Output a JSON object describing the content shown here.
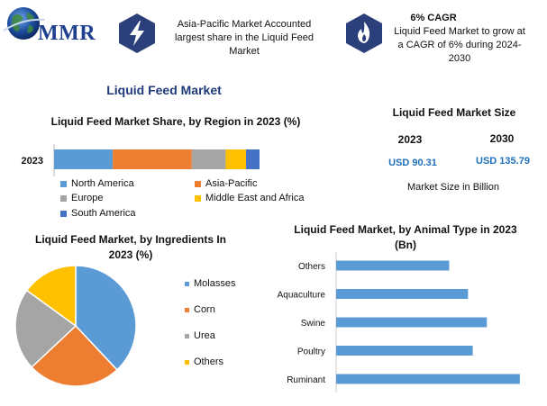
{
  "logo": {
    "text": "MMR",
    "icon": "globe-icon"
  },
  "header_cards": [
    {
      "icon": "lightning-bolt-icon",
      "text": "Asia-Pacific Market Accounted largest share in the Liquid Feed Market"
    },
    {
      "icon": "flame-icon",
      "title": "6% CAGR",
      "text": "Liquid Feed Market to grow at a CAGR of 6% during 2024-2030"
    }
  ],
  "main_title": "Liquid Feed Market",
  "colors": {
    "accent": "#1f3a7a",
    "hex_icon": "#2b3f7a",
    "usd_text": "#1f6fb8"
  },
  "market_size": {
    "title": "Liquid Feed Market Size",
    "years": [
      "2023",
      "2030"
    ],
    "values": [
      "USD 90.31",
      "USD 135.79"
    ],
    "note": "Market Size in Billion"
  },
  "chart_data": [
    {
      "type": "bar",
      "orientation": "horizontal-stacked",
      "title": "Liquid Feed Market Share, by Region in 2023 (%)",
      "categories": [
        "2023"
      ],
      "series": [
        {
          "name": "North America",
          "values": [
            26
          ],
          "color": "#5b9bd5"
        },
        {
          "name": "Asia-Pacific",
          "values": [
            35
          ],
          "color": "#ed7d31"
        },
        {
          "name": "Europe",
          "values": [
            15
          ],
          "color": "#a5a5a5"
        },
        {
          "name": "Middle East and Africa",
          "values": [
            9
          ],
          "color": "#ffc000"
        },
        {
          "name": "South America",
          "values": [
            6
          ],
          "color": "#4472c4"
        }
      ],
      "xlim": [
        0,
        100
      ],
      "legend": "bottom"
    },
    {
      "type": "pie",
      "title": "Liquid Feed Market, by Ingredients In 2023 (%)",
      "labels": [
        "Molasses",
        "Corn",
        "Urea",
        "Others"
      ],
      "values": [
        38,
        25,
        22,
        15
      ],
      "colors": [
        "#5b9bd5",
        "#ed7d31",
        "#a5a5a5",
        "#ffc000"
      ],
      "legend": "right"
    },
    {
      "type": "bar",
      "orientation": "horizontal",
      "title": "Liquid Feed Market, by Animal Type in 2023 (Bn)",
      "categories": [
        "Others",
        "Aquaculture",
        "Swine",
        "Poultry",
        "Ruminant"
      ],
      "values": [
        12,
        14,
        16,
        14.5,
        19.5
      ],
      "color": "#5b9bd5",
      "xlim": [
        0,
        22
      ],
      "grid": false
    }
  ]
}
